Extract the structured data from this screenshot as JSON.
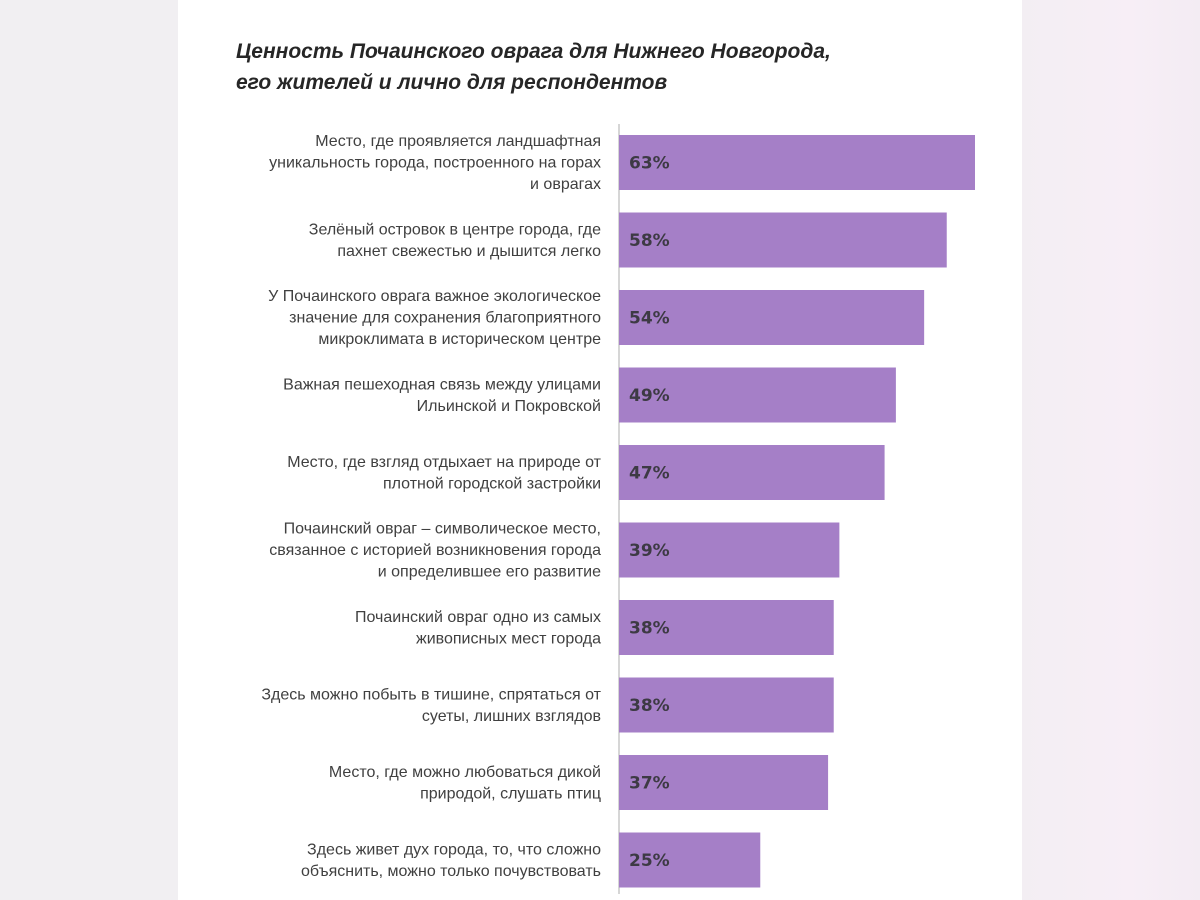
{
  "chart_data": {
    "type": "bar",
    "orientation": "horizontal",
    "title": "Ценность Почаинского оврага для Нижнего Новгорода, его жителей и лично для респондентов",
    "title_lines": [
      "Ценность Почаинского оврага для Нижнего Новгорода,",
      "его жителей и лично для респондентов"
    ],
    "categories": [
      [
        "Место, где проявляется ландшафтная",
        "уникальность города, построенного на горах",
        "и оврагах"
      ],
      [
        "Зелёный островок в центре города, где",
        "пахнет свежестью и дышится легко"
      ],
      [
        "У Почаинского оврага важное экологическое",
        "значение для сохранения благоприятного",
        "микроклимата в историческом центре"
      ],
      [
        "Важная пешеходная связь между улицами",
        "Ильинской и Покровской"
      ],
      [
        "Место, где взгляд отдыхает на природе от",
        "плотной городской застройки"
      ],
      [
        "Почаинский овраг – символическое место,",
        "связанное с историей возникновения города",
        "и определившее его развитие"
      ],
      [
        "Почаинский овраг одно из самых",
        "живописных мест города"
      ],
      [
        "Здесь можно побыть в тишине, спрятаться от",
        "суеты, лишних взглядов"
      ],
      [
        "Место, где можно любоваться дикой",
        "природой, слушать птиц"
      ],
      [
        "Здесь живет дух города, то, что сложно",
        "объяснить, можно только почувствовать"
      ]
    ],
    "values": [
      63,
      58,
      54,
      49,
      47,
      39,
      38,
      38,
      37,
      25
    ],
    "value_labels": [
      "63%",
      "58%",
      "54%",
      "49%",
      "47%",
      "39%",
      "38%",
      "38%",
      "37%",
      "25%"
    ],
    "unit": "%",
    "xlim": [
      0,
      63
    ],
    "bar_color": "#a57fc7",
    "axis_color": "#c8c8c8",
    "grid": false,
    "legend": "none"
  }
}
